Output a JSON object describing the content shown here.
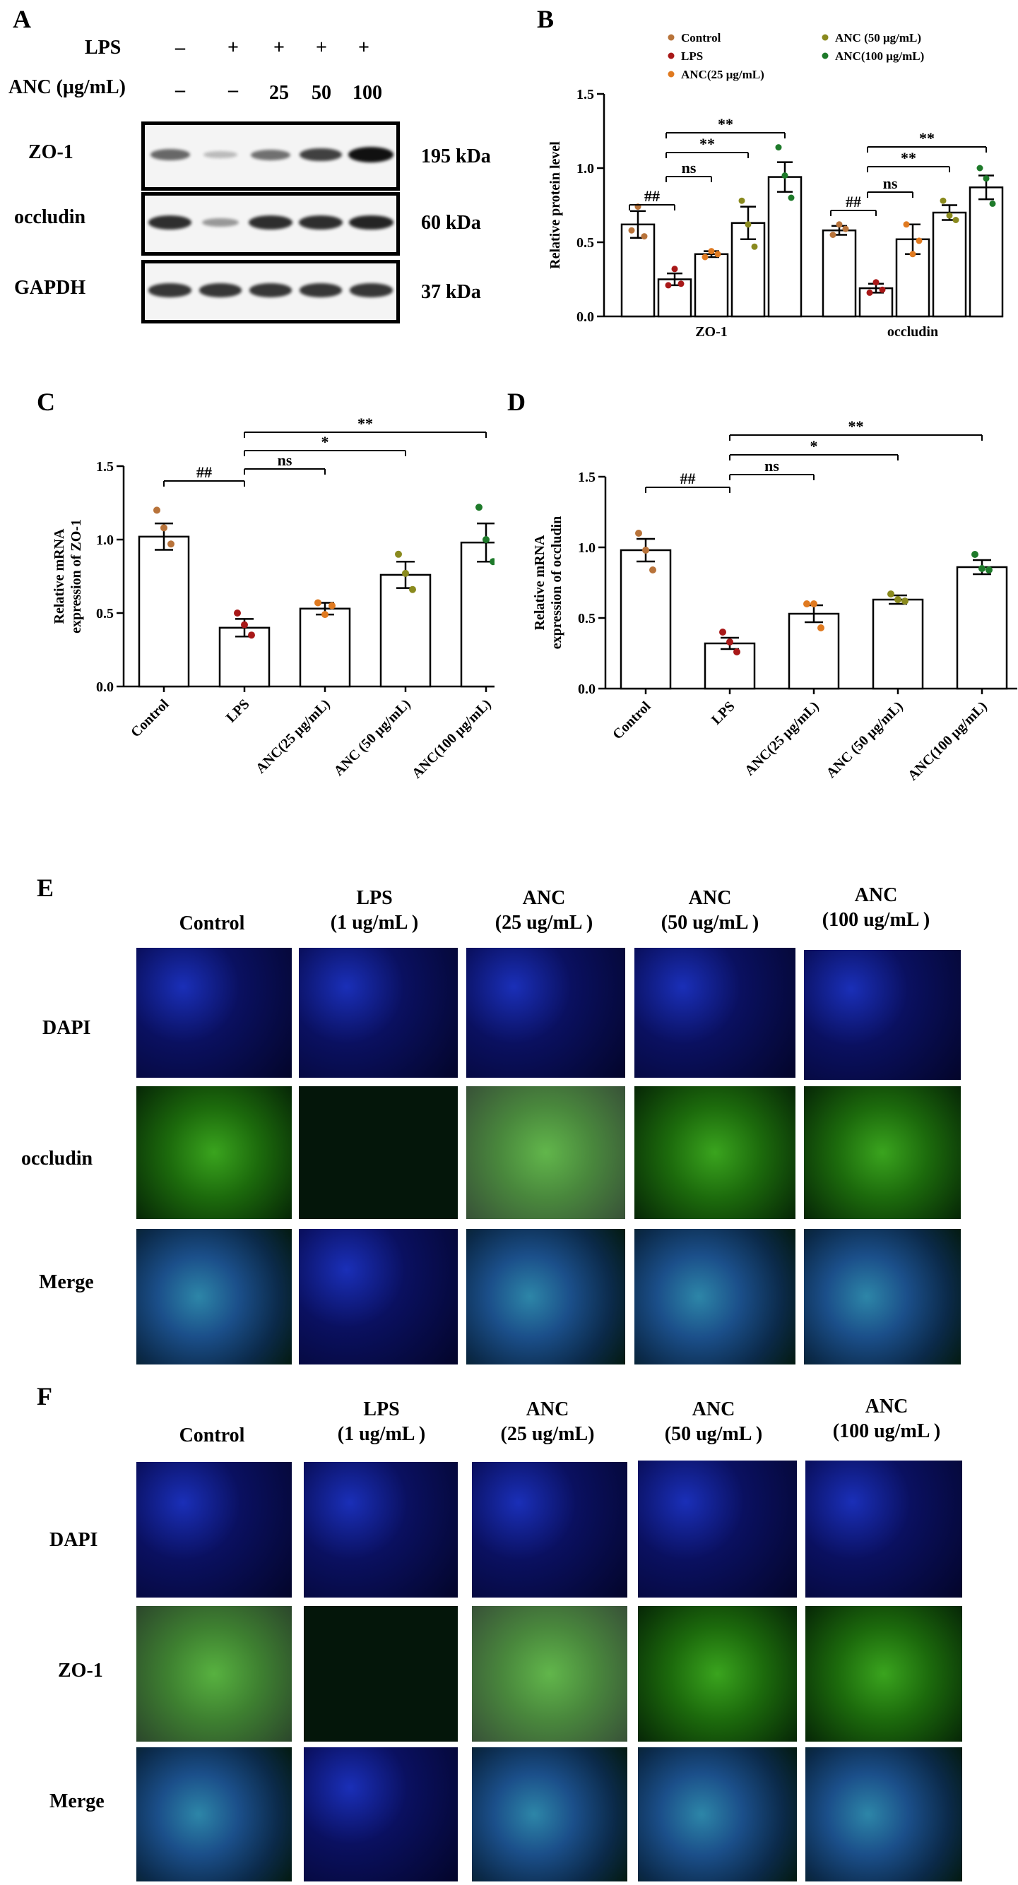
{
  "panels": {
    "A": "A",
    "B": "B",
    "C": "C",
    "D": "D",
    "E": "E",
    "F": "F"
  },
  "western": {
    "treatments": [
      {
        "label": "LPS",
        "values": [
          "–",
          "+",
          "+",
          "+",
          "+"
        ]
      },
      {
        "label": "ANC (μg/mL)",
        "values": [
          "–",
          "–",
          "25",
          "50",
          "100"
        ]
      }
    ],
    "blots": [
      {
        "protein": "ZO-1",
        "kda": "195 kDa",
        "intensity": [
          0.55,
          0.12,
          0.5,
          0.75,
          1.0
        ]
      },
      {
        "protein": "occludin",
        "kda": "60 kDa",
        "intensity": [
          0.85,
          0.3,
          0.85,
          0.85,
          0.9
        ]
      },
      {
        "protein": "GAPDH",
        "kda": "37 kDa",
        "intensity": [
          0.8,
          0.8,
          0.8,
          0.8,
          0.8
        ]
      }
    ]
  },
  "colors": {
    "Control": "#b8733a",
    "LPS": "#a81818",
    "ANC25": "#e07a20",
    "ANC50": "#8a8a1e",
    "ANC100": "#1e7a2a"
  },
  "chart_data": [
    {
      "panel": "B",
      "type": "bar",
      "ylabel": "Relative protein level",
      "ylim": [
        0,
        1.5
      ],
      "yticks": [
        "0.0",
        "0.5",
        "1.0",
        "1.5"
      ],
      "categories": [
        "ZO-1",
        "occludin"
      ],
      "legend": [
        "Control",
        "LPS",
        "ANC(25 μg/mL)",
        "ANC (50 μg/mL)",
        "ANC(100 μg/mL)"
      ],
      "series": [
        {
          "name": "Control",
          "values": [
            0.62,
            0.58
          ],
          "errors": [
            0.09,
            0.03
          ],
          "points": [
            [
              0.58,
              0.74,
              0.54
            ],
            [
              0.55,
              0.62,
              0.59
            ]
          ]
        },
        {
          "name": "LPS",
          "values": [
            0.25,
            0.19
          ],
          "errors": [
            0.04,
            0.03
          ],
          "points": [
            [
              0.21,
              0.32,
              0.22
            ],
            [
              0.16,
              0.23,
              0.18
            ]
          ]
        },
        {
          "name": "ANC(25 μg/mL)",
          "values": [
            0.42,
            0.52
          ],
          "errors": [
            0.02,
            0.1
          ],
          "points": [
            [
              0.4,
              0.44,
              0.42
            ],
            [
              0.62,
              0.42,
              0.51
            ]
          ]
        },
        {
          "name": "ANC (50 μg/mL)",
          "values": [
            0.63,
            0.7
          ],
          "errors": [
            0.11,
            0.05
          ],
          "points": [
            [
              0.78,
              0.62,
              0.47
            ],
            [
              0.78,
              0.68,
              0.65
            ]
          ]
        },
        {
          "name": "ANC(100 μg/mL)",
          "values": [
            0.94,
            0.87
          ],
          "errors": [
            0.1,
            0.08
          ],
          "points": [
            [
              1.14,
              0.95,
              0.8
            ],
            [
              1.0,
              0.93,
              0.76
            ]
          ]
        }
      ],
      "annotations": [
        {
          "cat": 0,
          "from": 0,
          "to": 1,
          "text": "##"
        },
        {
          "cat": 0,
          "from": 1,
          "to": 2,
          "text": "ns"
        },
        {
          "cat": 0,
          "from": 1,
          "to": 3,
          "text": "**"
        },
        {
          "cat": 0,
          "from": 1,
          "to": 4,
          "text": "**"
        },
        {
          "cat": 1,
          "from": 0,
          "to": 1,
          "text": "##"
        },
        {
          "cat": 1,
          "from": 1,
          "to": 2,
          "text": "ns"
        },
        {
          "cat": 1,
          "from": 1,
          "to": 3,
          "text": "**"
        },
        {
          "cat": 1,
          "from": 1,
          "to": 4,
          "text": "**"
        }
      ]
    },
    {
      "panel": "C",
      "type": "bar",
      "ylabel": "Relative mRNA\nexpression of ZO-1",
      "ylim": [
        0,
        1.5
      ],
      "yticks": [
        "0.0",
        "0.5",
        "1.0",
        "1.5"
      ],
      "categories": [
        "Control",
        "LPS",
        "ANC(25 μg/mL)",
        "ANC (50 μg/mL)",
        "ANC(100 μg/mL)"
      ],
      "values": [
        1.02,
        0.4,
        0.53,
        0.76,
        0.98
      ],
      "errors": [
        0.09,
        0.06,
        0.04,
        0.09,
        0.13
      ],
      "points": [
        [
          1.2,
          1.08,
          0.97
        ],
        [
          0.5,
          0.42,
          0.35
        ],
        [
          0.57,
          0.49,
          0.55
        ],
        [
          0.9,
          0.77,
          0.66
        ],
        [
          1.22,
          1.0,
          0.85
        ]
      ],
      "annotations": [
        {
          "from": 0,
          "to": 1,
          "text": "##"
        },
        {
          "from": 1,
          "to": 2,
          "text": "ns"
        },
        {
          "from": 1,
          "to": 3,
          "text": "*"
        },
        {
          "from": 1,
          "to": 4,
          "text": "**"
        }
      ]
    },
    {
      "panel": "D",
      "type": "bar",
      "ylabel": "Relative mRNA\nexpression of occludin",
      "ylim": [
        0,
        1.5
      ],
      "yticks": [
        "0.0",
        "0.5",
        "1.0",
        "1.5"
      ],
      "categories": [
        "Control",
        "LPS",
        "ANC(25 μg/mL)",
        "ANC (50 μg/mL)",
        "ANC(100 μg/mL)"
      ],
      "values": [
        0.98,
        0.32,
        0.53,
        0.63,
        0.86
      ],
      "errors": [
        0.08,
        0.04,
        0.06,
        0.03,
        0.05
      ],
      "points": [
        [
          1.1,
          0.98,
          0.84
        ],
        [
          0.4,
          0.33,
          0.26
        ],
        [
          0.6,
          0.6,
          0.43
        ],
        [
          0.67,
          0.63,
          0.62
        ],
        [
          0.95,
          0.85,
          0.84
        ]
      ],
      "annotations": [
        {
          "from": 0,
          "to": 1,
          "text": "##"
        },
        {
          "from": 1,
          "to": 2,
          "text": "ns"
        },
        {
          "from": 1,
          "to": 3,
          "text": "*"
        },
        {
          "from": 1,
          "to": 4,
          "text": "**"
        }
      ]
    }
  ],
  "if_E": {
    "columns": [
      "Control",
      "LPS\n(1 ug/mL )",
      "ANC\n(25 ug/mL )",
      "ANC\n(50 ug/mL )",
      "ANC\n(100 ug/mL )"
    ],
    "rows": [
      "DAPI",
      "occludin",
      "Merge"
    ]
  },
  "if_F": {
    "columns": [
      "Control",
      "LPS\n(1 ug/mL )",
      "ANC\n(25 ug/mL)",
      "ANC\n(50 ug/mL )",
      "ANC\n(100 ug/mL )"
    ],
    "rows": [
      "DAPI",
      "ZO-1",
      "Merge"
    ]
  }
}
